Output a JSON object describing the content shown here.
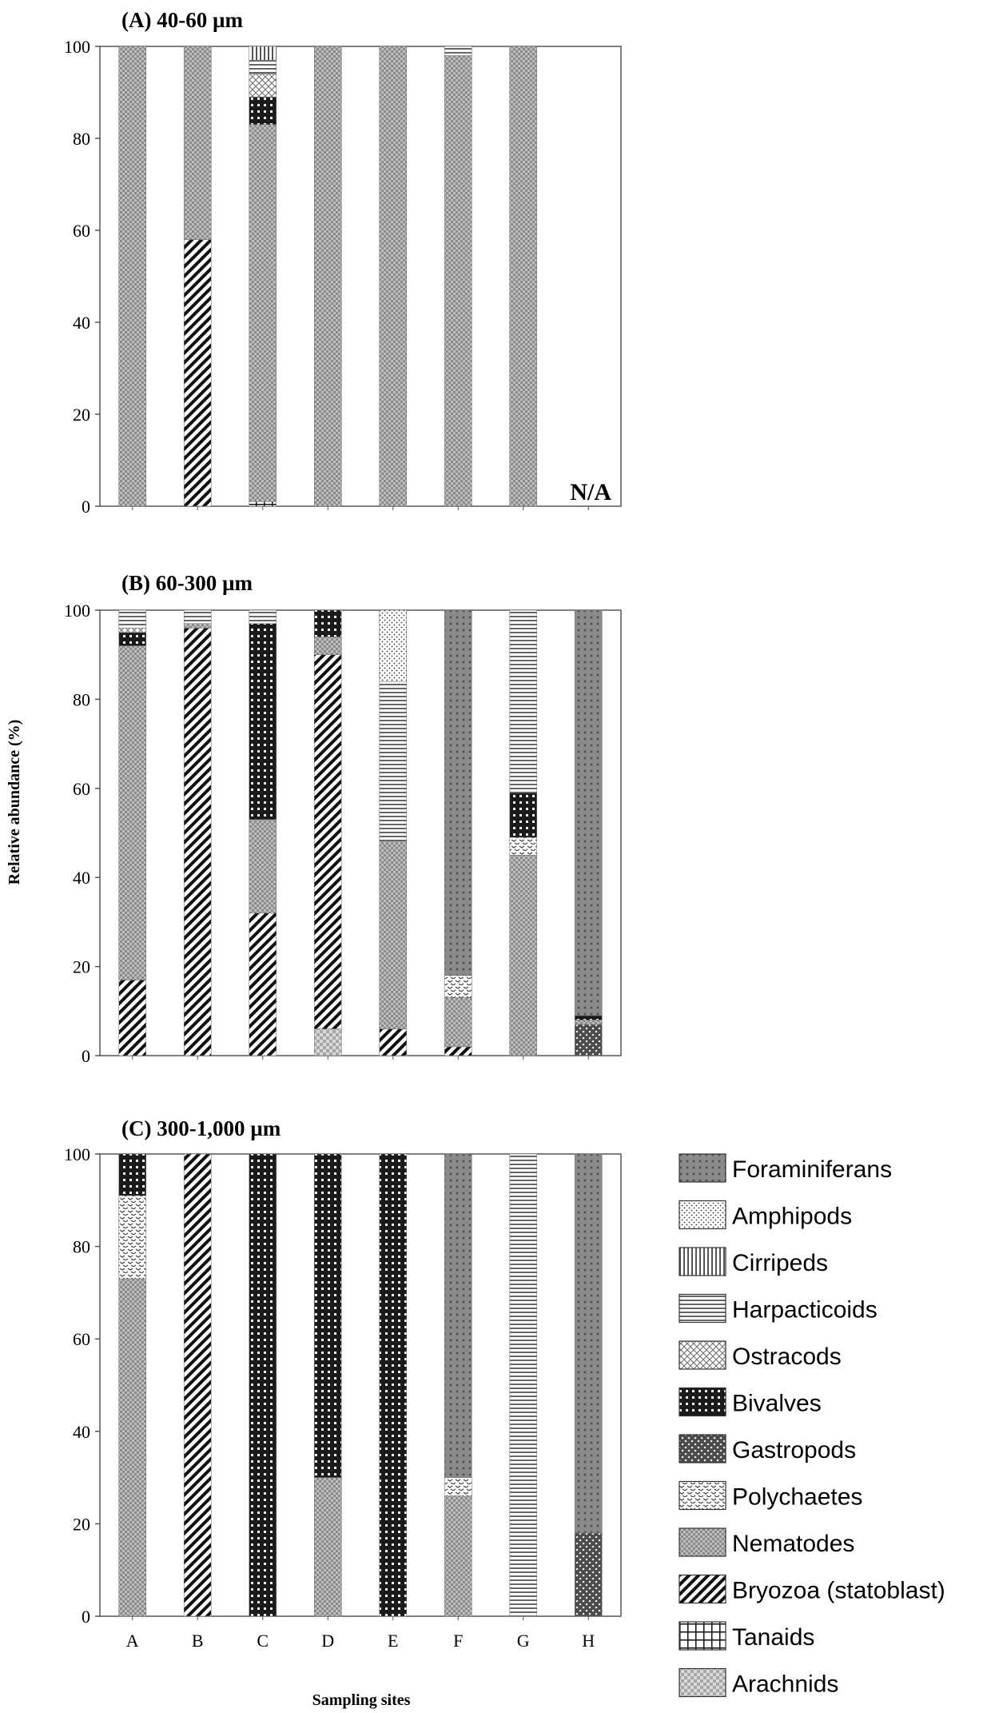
{
  "chart_data": [
    {
      "type": "bar",
      "stacked": true,
      "title": "(A) 40-60 µm",
      "xlabel": "",
      "ylabel": "",
      "ylim": [
        0,
        100
      ],
      "yticks": [
        "0",
        "20",
        "40",
        "60",
        "80",
        "100"
      ],
      "categories": [
        "A",
        "B",
        "C",
        "D",
        "E",
        "F",
        "G",
        "H"
      ],
      "show_xtick_labels": false,
      "annotation": "N/A",
      "series": [
        {
          "name": "Tanaids",
          "values": [
            0,
            0,
            1,
            0,
            0,
            0,
            0,
            0
          ]
        },
        {
          "name": "Bryozoa (statoblast)",
          "values": [
            0,
            58,
            0,
            0,
            0,
            0,
            0,
            0
          ]
        },
        {
          "name": "Nematodes",
          "values": [
            100,
            42,
            82,
            100,
            100,
            98,
            100,
            0
          ]
        },
        {
          "name": "Bivalves",
          "values": [
            0,
            0,
            6,
            0,
            0,
            0,
            0,
            0
          ]
        },
        {
          "name": "Ostracods",
          "values": [
            0,
            0,
            5,
            0,
            0,
            0,
            0,
            0
          ]
        },
        {
          "name": "Harpacticoids",
          "values": [
            0,
            0,
            3,
            0,
            0,
            2,
            0,
            0
          ]
        },
        {
          "name": "Cirripeds",
          "values": [
            0,
            0,
            3,
            0,
            0,
            0,
            0,
            0
          ]
        }
      ]
    },
    {
      "type": "bar",
      "stacked": true,
      "title": "(B) 60-300 µm",
      "xlabel": "",
      "ylabel": "Relative abundance (%)",
      "ylim": [
        0,
        100
      ],
      "yticks": [
        "0",
        "20",
        "40",
        "60",
        "80",
        "100"
      ],
      "categories": [
        "A",
        "B",
        "C",
        "D",
        "E",
        "F",
        "G",
        "H"
      ],
      "show_xtick_labels": false,
      "series": [
        {
          "name": "Arachnids",
          "values": [
            0,
            0,
            0,
            6,
            0,
            0,
            0,
            0
          ]
        },
        {
          "name": "Bryozoa (statoblast)",
          "values": [
            17,
            96,
            32,
            84,
            6,
            2,
            0,
            0
          ]
        },
        {
          "name": "Gastropods",
          "values": [
            0,
            0,
            0,
            0,
            0,
            0,
            0,
            7
          ]
        },
        {
          "name": "Nematodes",
          "values": [
            75,
            1,
            21,
            4,
            42,
            11,
            45,
            1
          ]
        },
        {
          "name": "Polychaetes",
          "values": [
            0,
            0,
            0,
            0,
            0,
            5,
            4,
            0
          ]
        },
        {
          "name": "Bivalves",
          "values": [
            3,
            0,
            44,
            6,
            0,
            0,
            10,
            1
          ]
        },
        {
          "name": "Ostracods",
          "values": [
            1,
            0,
            0,
            0,
            0,
            0,
            0,
            0
          ]
        },
        {
          "name": "Harpacticoids",
          "values": [
            4,
            3,
            3,
            0,
            36,
            0,
            41,
            0
          ]
        },
        {
          "name": "Amphipods",
          "values": [
            0,
            0,
            0,
            0,
            16,
            0,
            0,
            0
          ]
        },
        {
          "name": "Foraminiferans",
          "values": [
            0,
            0,
            0,
            0,
            0,
            82,
            0,
            91
          ]
        }
      ]
    },
    {
      "type": "bar",
      "stacked": true,
      "title": "(C) 300-1,000 µm",
      "xlabel": "Sampling sites",
      "ylabel": "",
      "ylim": [
        0,
        100
      ],
      "yticks": [
        "0",
        "20",
        "40",
        "60",
        "80",
        "100"
      ],
      "categories": [
        "A",
        "B",
        "C",
        "D",
        "E",
        "F",
        "G",
        "H"
      ],
      "show_xtick_labels": true,
      "series": [
        {
          "name": "Gastropods",
          "values": [
            0,
            0,
            0,
            0,
            0,
            0,
            0,
            18
          ]
        },
        {
          "name": "Bryozoa (statoblast)",
          "values": [
            0,
            100,
            0,
            0,
            0,
            0,
            0,
            0
          ]
        },
        {
          "name": "Nematodes",
          "values": [
            73,
            0,
            0,
            30,
            0,
            26,
            0,
            0
          ]
        },
        {
          "name": "Polychaetes",
          "values": [
            18,
            0,
            0,
            0,
            0,
            4,
            0,
            0
          ]
        },
        {
          "name": "Bivalves",
          "values": [
            9,
            0,
            100,
            70,
            100,
            0,
            0,
            0
          ]
        },
        {
          "name": "Harpacticoids",
          "values": [
            0,
            0,
            0,
            0,
            0,
            0,
            100,
            0
          ]
        },
        {
          "name": "Foraminiferans",
          "values": [
            0,
            0,
            0,
            0,
            0,
            70,
            0,
            82
          ]
        }
      ]
    }
  ],
  "legend": {
    "entries": [
      {
        "key": "Foraminiferans",
        "label": "Foraminiferans"
      },
      {
        "key": "Amphipods",
        "label": "Amphipods"
      },
      {
        "key": "Cirripeds",
        "label": "Cirripeds"
      },
      {
        "key": "Harpacticoids",
        "label": "Harpacticoids"
      },
      {
        "key": "Ostracods",
        "label": "Ostracods"
      },
      {
        "key": "Bivalves",
        "label": "Bivalves"
      },
      {
        "key": "Gastropods",
        "label": "Gastropods"
      },
      {
        "key": "Polychaetes",
        "label": "Polychaetes"
      },
      {
        "key": "Nematodes",
        "label": "Nematodes"
      },
      {
        "key": "Bryozoa (statoblast)",
        "label": "Bryozoa (statoblast)"
      },
      {
        "key": "Tanaids",
        "label": "Tanaids"
      },
      {
        "key": "Arachnids",
        "label": "Arachnids"
      }
    ]
  }
}
